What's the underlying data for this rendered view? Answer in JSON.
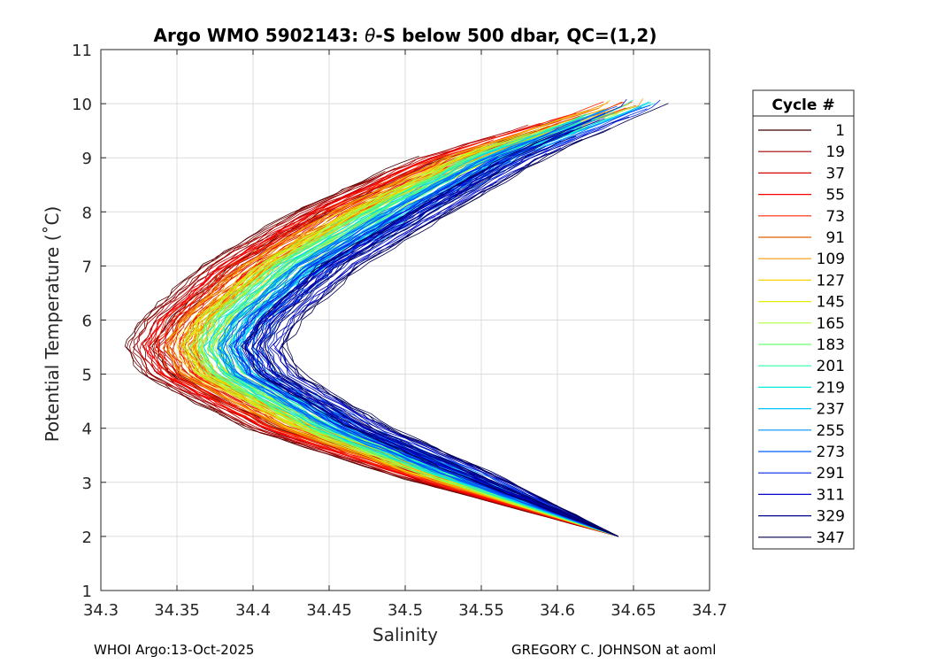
{
  "chart_data": {
    "type": "line",
    "title_prefix": "Argo WMO 5902143: ",
    "title_symbol": "θ",
    "title_suffix": "-S below 500 dbar,  QC=(1,2)",
    "xlabel": "Salinity",
    "ylabel": "Potential Temperature (˚C)",
    "xlim": [
      34.3,
      34.7
    ],
    "ylim": [
      1,
      11
    ],
    "x_ticks": [
      34.3,
      34.35,
      34.4,
      34.45,
      34.5,
      34.55,
      34.6,
      34.65,
      34.7
    ],
    "x_tick_labels": [
      "34.3",
      "34.35",
      "34.4",
      "34.45",
      "34.5",
      "34.55",
      "34.6",
      "34.65",
      "34.7"
    ],
    "y_ticks": [
      1,
      2,
      3,
      4,
      5,
      6,
      7,
      8,
      9,
      10,
      11
    ],
    "y_tick_labels": [
      "1",
      "2",
      "3",
      "4",
      "5",
      "6",
      "7",
      "8",
      "9",
      "10",
      "11"
    ],
    "grid": true,
    "legend": {
      "title": "Cycle #",
      "placement": "outside-right",
      "entries": [
        {
          "label": "1",
          "color": "#3a0000"
        },
        {
          "label": "19",
          "color": "#a00000"
        },
        {
          "label": "37",
          "color": "#d40000"
        },
        {
          "label": "55",
          "color": "#ff0000"
        },
        {
          "label": "73",
          "color": "#ff2a00"
        },
        {
          "label": "91",
          "color": "#e06000"
        },
        {
          "label": "109",
          "color": "#ff9a00"
        },
        {
          "label": "127",
          "color": "#ffd000"
        },
        {
          "label": "145",
          "color": "#e6ee00"
        },
        {
          "label": "165",
          "color": "#b0ff3c"
        },
        {
          "label": "183",
          "color": "#6aff70"
        },
        {
          "label": "201",
          "color": "#30ffa8"
        },
        {
          "label": "219",
          "color": "#00eedd"
        },
        {
          "label": "237",
          "color": "#00c4ff"
        },
        {
          "label": "255",
          "color": "#0090ff"
        },
        {
          "label": "273",
          "color": "#005cff"
        },
        {
          "label": "291",
          "color": "#0028ee"
        },
        {
          "label": "311",
          "color": "#0000cc"
        },
        {
          "label": "329",
          "color": "#00008c"
        },
        {
          "label": "347",
          "color": "#00004a"
        }
      ]
    },
    "series_envelope": {
      "description_points_temp": [
        2.0,
        3.0,
        4.0,
        5.0,
        5.5,
        6.0,
        7.0,
        8.0,
        9.0,
        10.0
      ],
      "first_cycle_salinity": [
        34.64,
        34.52,
        34.41,
        34.34,
        34.33,
        34.34,
        34.38,
        34.44,
        34.52,
        34.64
      ],
      "last_cycle_salinity": [
        34.64,
        34.56,
        34.48,
        34.42,
        34.41,
        34.42,
        34.46,
        34.52,
        34.58,
        34.66
      ]
    }
  },
  "footer": {
    "left": "WHOI Argo:13-Oct-2025",
    "right": "GREGORY C. JOHNSON at aoml"
  }
}
